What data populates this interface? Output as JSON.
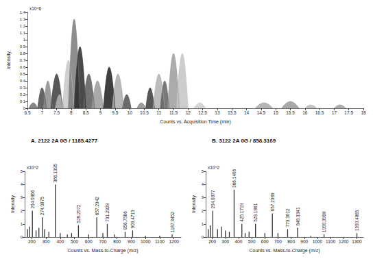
{
  "chart_data": [
    {
      "type": "line",
      "xlabel": "Counts vs. Acquisition Time (min)",
      "ylabel": "Intensity",
      "annotations": [
        {
          "text": "x10^6"
        }
      ],
      "xlim": [
        6.5,
        18
      ],
      "xticks": [
        6.5,
        7,
        7.5,
        8,
        8.5,
        9,
        9.5,
        10,
        10.5,
        11,
        11.5,
        12,
        12.5,
        13,
        13.5,
        14,
        14.5,
        15,
        15.5,
        16,
        16.5,
        17,
        17.5,
        18
      ],
      "ylim": [
        0,
        1.4
      ],
      "yticks": [
        0,
        0.1,
        0.2,
        0.3,
        0.4,
        0.5,
        0.6,
        0.7,
        0.8,
        0.9,
        1,
        1.1,
        1.2,
        1.3,
        1.4
      ],
      "grid": false,
      "series": [
        {
          "color": "#6e6e6e",
          "x": [
            6.55,
            6.7,
            6.85
          ],
          "values": [
            0,
            0.08,
            0
          ]
        },
        {
          "color": "#4a4a4a",
          "x": [
            6.85,
            7.0,
            7.15
          ],
          "values": [
            0,
            0.3,
            0
          ]
        },
        {
          "color": "#8c8c8c",
          "x": [
            7.05,
            7.2,
            7.35
          ],
          "values": [
            0,
            0.4,
            0
          ]
        },
        {
          "color": "#3c3c3c",
          "x": [
            7.3,
            7.5,
            7.7
          ],
          "values": [
            0,
            0.5,
            0
          ]
        },
        {
          "color": "#b4b4b4",
          "x": [
            7.45,
            7.6,
            7.75
          ],
          "values": [
            0,
            0.2,
            0
          ]
        },
        {
          "color": "#c8c8c8",
          "x": [
            7.7,
            7.9,
            8.1
          ],
          "values": [
            0,
            0.7,
            0
          ]
        },
        {
          "color": "#7a7a7a",
          "x": [
            7.9,
            8.1,
            8.3
          ],
          "values": [
            0,
            1.3,
            0
          ]
        },
        {
          "color": "#2a2a2a",
          "x": [
            8.1,
            8.3,
            8.5
          ],
          "values": [
            0,
            0.9,
            0
          ]
        },
        {
          "color": "#5a5a5a",
          "x": [
            8.4,
            8.6,
            8.8
          ],
          "values": [
            0,
            0.5,
            0
          ]
        },
        {
          "color": "#9a9a9a",
          "x": [
            8.7,
            8.9,
            9.1
          ],
          "values": [
            0,
            0.4,
            0
          ]
        },
        {
          "color": "#1e1e1e",
          "x": [
            9.1,
            9.3,
            9.5
          ],
          "values": [
            0,
            0.6,
            0
          ]
        },
        {
          "color": "#aaaaaa",
          "x": [
            9.4,
            9.6,
            9.8
          ],
          "values": [
            0,
            0.5,
            0
          ]
        },
        {
          "color": "#505050",
          "x": [
            9.75,
            9.9,
            10.05
          ],
          "values": [
            0,
            0.2,
            0
          ]
        },
        {
          "color": "#8a8a8a",
          "x": [
            10.25,
            10.4,
            10.55
          ],
          "values": [
            0,
            0.08,
            0
          ]
        },
        {
          "color": "#3a3a3a",
          "x": [
            10.55,
            10.7,
            10.85
          ],
          "values": [
            0,
            0.3,
            0
          ]
        },
        {
          "color": "#b0b0b0",
          "x": [
            10.8,
            11.0,
            11.2
          ],
          "values": [
            0,
            0.5,
            0
          ]
        },
        {
          "color": "#606060",
          "x": [
            11.05,
            11.2,
            11.35
          ],
          "values": [
            0,
            0.4,
            0
          ]
        },
        {
          "color": "#9c9c9c",
          "x": [
            11.3,
            11.5,
            11.7
          ],
          "values": [
            0,
            0.8,
            0
          ]
        },
        {
          "color": "#c4c4c4",
          "x": [
            11.6,
            11.8,
            12.0
          ],
          "values": [
            0,
            0.8,
            0
          ]
        },
        {
          "color": "#d0d0d0",
          "x": [
            12.2,
            12.4,
            12.6
          ],
          "values": [
            0,
            0.08,
            0
          ]
        },
        {
          "color": "#a8a8a8",
          "x": [
            14.3,
            14.6,
            14.9
          ],
          "values": [
            0,
            0.08,
            0
          ]
        },
        {
          "color": "#9a9a9a",
          "x": [
            15.2,
            15.5,
            15.8
          ],
          "values": [
            0,
            0.1,
            0
          ]
        },
        {
          "color": "#b8b8b8",
          "x": [
            16.0,
            16.2,
            16.4
          ],
          "values": [
            0,
            0.05,
            0
          ]
        },
        {
          "color": "#a0a0a0",
          "x": [
            17.0,
            17.2,
            17.4
          ],
          "values": [
            0,
            0.05,
            0
          ]
        }
      ]
    },
    {
      "type": "bar",
      "title": "A. 2122 2A 0G / 1185.4277",
      "xlabel": "Counts vs. Mass-to-Charge (m/z)",
      "ylabel": "Intensity",
      "color": "#333333",
      "xlim": [
        150,
        1250
      ],
      "xticks": [
        200,
        300,
        400,
        500,
        600,
        700,
        800,
        900,
        1000,
        1100,
        1200
      ],
      "ylim": [
        0,
        5
      ],
      "yticks": [
        0,
        1,
        2,
        3,
        4,
        5
      ],
      "grid": false,
      "annotations": [
        {
          "text": "x10^2"
        },
        {
          "x": 204.0866,
          "text": "204.0866"
        },
        {
          "x": 274.0875,
          "text": "274.0875"
        },
        {
          "x": 366.1395,
          "text": "366.1395"
        },
        {
          "x": 528.2072,
          "text": "528.2072"
        },
        {
          "x": 657.2342,
          "text": "657.2342"
        },
        {
          "x": 731.2928,
          "text": "731.2928"
        },
        {
          "x": 856.7566,
          "text": "856.7566"
        },
        {
          "x": 909.4713,
          "text": "909.4713"
        },
        {
          "x": 1187.3452,
          "text": "1187.3452"
        }
      ],
      "x": [
        170,
        185,
        204.0866,
        230,
        250,
        274.0875,
        290,
        320,
        366.1395,
        400,
        450,
        480,
        528.2072,
        600,
        657.2342,
        700,
        731.2928,
        780,
        856.7566,
        909.4713,
        1000,
        1100,
        1187.3452
      ],
      "values": [
        0.6,
        0.8,
        2.0,
        0.5,
        0.7,
        1.5,
        0.6,
        0.4,
        4.0,
        0.3,
        0.2,
        0.3,
        0.9,
        0.2,
        1.5,
        0.3,
        1.0,
        0.2,
        0.4,
        0.5,
        0.1,
        0.1,
        0.2
      ]
    },
    {
      "type": "bar",
      "title": "B. 3122 2A 0G / 858.3169",
      "xlabel": "Counts vs. Mass-to-Charge (m/z)",
      "ylabel": "Intensity",
      "color": "#333333",
      "xlim": [
        150,
        1350
      ],
      "xticks": [
        200,
        300,
        400,
        500,
        600,
        700,
        800,
        900,
        1000,
        1100,
        1200,
        1300
      ],
      "ylim": [
        0,
        5
      ],
      "yticks": [
        0,
        1,
        2,
        3,
        4,
        5
      ],
      "grid": false,
      "annotations": [
        {
          "text": "x10^2"
        },
        {
          "x": 204.0877,
          "text": "204.0877"
        },
        {
          "x": 366.1406,
          "text": "366.1406"
        },
        {
          "x": 425.1719,
          "text": "425.1719"
        },
        {
          "x": 529.1861,
          "text": "529.1861"
        },
        {
          "x": 657.2389,
          "text": "657.2389"
        },
        {
          "x": 773.3012,
          "text": "773.3012"
        },
        {
          "x": 849.3341,
          "text": "849.3341"
        },
        {
          "x": 1050.3998,
          "text": "1050.3998"
        },
        {
          "x": 1300.4865,
          "text": "1300.4865"
        }
      ],
      "x": [
        170,
        185,
        204.0877,
        240,
        270,
        300,
        330,
        366.1406,
        425.1719,
        450,
        480,
        529.1861,
        600,
        657.2389,
        700,
        773.3012,
        849.3341,
        950,
        1050.3998,
        1300.4865
      ],
      "values": [
        0.6,
        0.9,
        2.0,
        0.6,
        0.8,
        0.5,
        0.4,
        3.6,
        1.0,
        0.3,
        0.4,
        1.0,
        0.3,
        1.8,
        0.3,
        0.6,
        0.7,
        0.1,
        0.2,
        0.3
      ]
    }
  ]
}
